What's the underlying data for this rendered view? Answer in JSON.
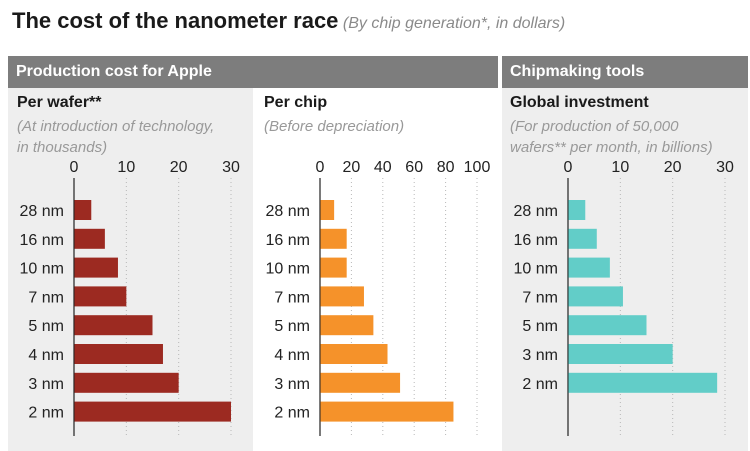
{
  "title": "The cost of the nanometer race",
  "subtitle": "(By chip generation*, in dollars)",
  "panels": {
    "production": {
      "header": "Production cost for Apple"
    },
    "tools": {
      "header": "Chipmaking tools"
    }
  },
  "colors": {
    "wafer": "#9c2a21",
    "chip": "#f5922a",
    "tools": "#62cdc8",
    "panel_bg": "#eeeeee",
    "header_bg": "#7d7d7d"
  },
  "chart_data": [
    {
      "type": "bar",
      "title": "Per wafer**",
      "subtitle": "(At introduction of technology, in thousands)",
      "subtitle_lines": [
        "(At introduction of technology,",
        "in thousands)"
      ],
      "orientation": "horizontal",
      "categories": [
        "28 nm",
        "16 nm",
        "10 nm",
        "7 nm",
        "5 nm",
        "4 nm",
        "3 nm",
        "2 nm"
      ],
      "values": [
        3.3,
        5.9,
        8.4,
        10,
        15,
        17,
        20,
        30
      ],
      "xlim": [
        0,
        30
      ],
      "ticks": [
        0,
        10,
        20,
        30
      ],
      "tick_labels": [
        "0",
        "10",
        "20",
        "30"
      ],
      "grid": true
    },
    {
      "type": "bar",
      "title": "Per chip",
      "subtitle": "(Before depreciation)",
      "subtitle_lines": [
        "(Before depreciation)"
      ],
      "orientation": "horizontal",
      "categories": [
        "28 nm",
        "16 nm",
        "10 nm",
        "7 nm",
        "5 nm",
        "4 nm",
        "3 nm",
        "2 nm"
      ],
      "values": [
        9,
        17,
        17,
        28,
        34,
        43,
        51,
        85
      ],
      "xlim": [
        0,
        100
      ],
      "ticks": [
        0,
        20,
        40,
        60,
        80,
        100
      ],
      "tick_labels": [
        "0",
        "20",
        "40",
        "60",
        "80",
        "100"
      ],
      "grid": true
    },
    {
      "type": "bar",
      "title": "Global investment",
      "subtitle": "(For production of 50,000 wafers** per month, in billions)",
      "subtitle_lines": [
        "(For production of 50,000",
        "wafers** per month, in billions)"
      ],
      "orientation": "horizontal",
      "categories": [
        "28 nm",
        "16 nm",
        "10 nm",
        "7 nm",
        "5 nm",
        "3 nm",
        "2 nm"
      ],
      "values": [
        3.3,
        5.5,
        8,
        10.5,
        15,
        20,
        28.5
      ],
      "xlim": [
        0,
        30
      ],
      "ticks": [
        0,
        10,
        20,
        30
      ],
      "tick_labels": [
        "0",
        "10",
        "20",
        "30"
      ],
      "grid": true
    }
  ]
}
